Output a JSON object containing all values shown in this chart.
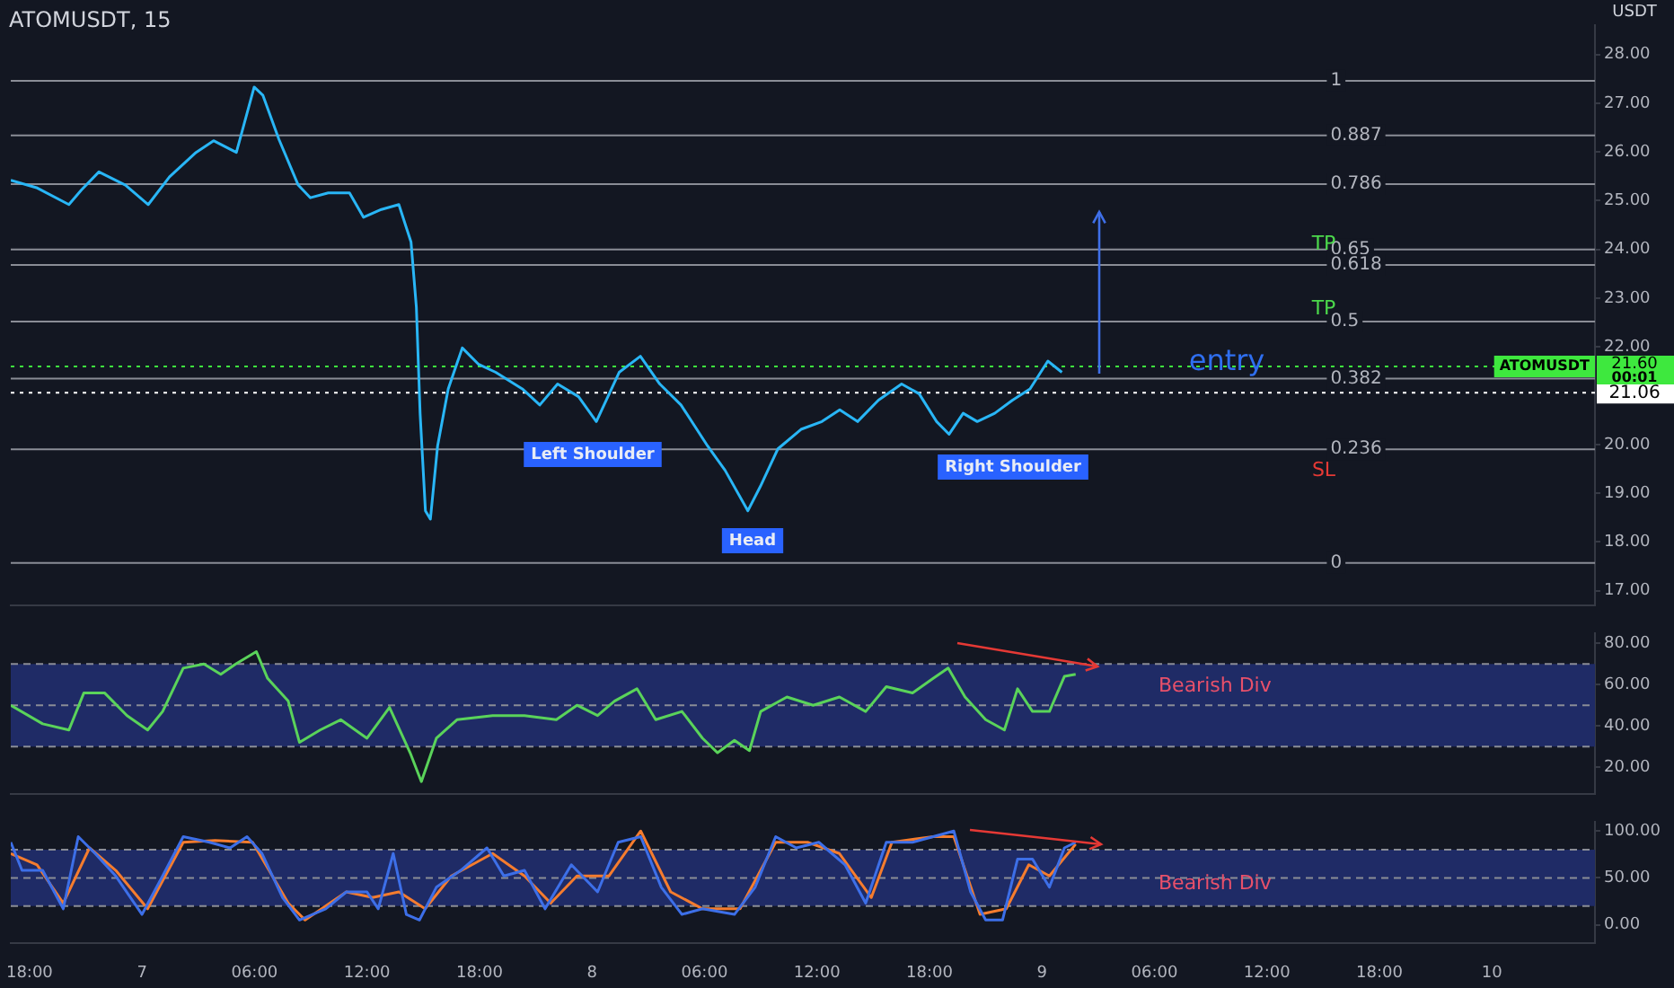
{
  "chart_data": [
    {
      "type": "line",
      "title": "ATOMUSDT, 15",
      "ylabel": "USDT",
      "xlim": [
        "--01-06T17:00",
        "--01-10T05:30"
      ],
      "ylim": [
        16.7,
        28.6
      ],
      "tick_labels": "y",
      "xticks": [
        {
          "value": "--01-06T18:00",
          "label": "18:00"
        },
        {
          "value": "--01-07T00:00",
          "label": "7"
        },
        {
          "value": "--01-07T06:00",
          "label": "06:00"
        },
        {
          "value": "--01-07T12:00",
          "label": "12:00"
        },
        {
          "value": "--01-07T18:00",
          "label": "18:00"
        },
        {
          "value": "--01-08T00:00",
          "label": "8"
        },
        {
          "value": "--01-08T06:00",
          "label": "06:00"
        },
        {
          "value": "--01-08T12:00",
          "label": "12:00"
        },
        {
          "value": "--01-08T18:00",
          "label": "18:00"
        },
        {
          "value": "--01-09T00:00",
          "label": "9"
        },
        {
          "value": "--01-09T06:00",
          "label": "06:00"
        },
        {
          "value": "--01-09T12:00",
          "label": "12:00"
        },
        {
          "value": "--01-09T18:00",
          "label": "18:00"
        },
        {
          "value": "--01-10T00:00",
          "label": "10"
        }
      ],
      "yticks": [
        {
          "value": 17,
          "label": "17.00"
        },
        {
          "value": 18,
          "label": "18.00"
        },
        {
          "value": 19,
          "label": "19.00"
        },
        {
          "value": 20,
          "label": "20.00"
        },
        {
          "value": 22,
          "label": "22.00"
        },
        {
          "value": 23,
          "label": "23.00"
        },
        {
          "value": 24,
          "label": "24.00"
        },
        {
          "value": 25,
          "label": "25.00"
        },
        {
          "value": 26,
          "label": "26.00"
        },
        {
          "value": 27,
          "label": "27.00"
        },
        {
          "value": 28,
          "label": "28.00"
        }
      ],
      "x": [
        "--01-06T17:00",
        "--01-06T18:25",
        "--01-06T20:06",
        "--01-06T20:46",
        "--01-06T21:42",
        "--01-06T23:07",
        "--01-07T00:20",
        "--01-07T01:28",
        "--01-07T02:53",
        "--01-07T03:49",
        "--01-07T05:02",
        "--01-07T05:59",
        "--01-07T06:27",
        "--01-07T07:18",
        "--01-07T08:20",
        "--01-07T08:59",
        "--01-07T09:56",
        "--01-07T11:04",
        "--01-07T11:49",
        "--01-07T12:46",
        "--01-07T13:42",
        "--01-07T14:21",
        "--01-07T14:38",
        "--01-07T14:50",
        "--01-07T15:07",
        "--01-07T15:23",
        "--01-07T15:46",
        "--01-07T16:20",
        "--01-07T17:05",
        "--01-07T17:56",
        "--01-07T18:52",
        "--01-07T20:17",
        "--01-07T21:13",
        "--01-07T22:10",
        "--01-07T23:17",
        "--01-08T00:14",
        "--01-08T01:27",
        "--01-08T02:35",
        "--01-08T03:37",
        "--01-08T04:45",
        "--01-08T06:10",
        "--01-08T07:06",
        "--01-08T08:19",
        "--01-08T08:59",
        "--01-08T09:55",
        "--01-08T11:09",
        "--01-08T12:16",
        "--01-08T13:13",
        "--01-08T14:10",
        "--01-08T15:17",
        "--01-08T16:31",
        "--01-08T17:27",
        "--01-08T18:23",
        "--01-08T19:03",
        "--01-08T19:48",
        "--01-08T20:33",
        "--01-08T21:29",
        "--01-08T22:26",
        "--01-08T23:22",
        "--01-09T00:19",
        "--01-09T01:04"
      ],
      "series": [
        {
          "color": "#29b6f6",
          "values": [
            25.42,
            25.26,
            24.92,
            25.22,
            25.59,
            25.32,
            24.92,
            25.49,
            25.99,
            26.23,
            25.99,
            27.33,
            27.16,
            26.26,
            25.32,
            25.06,
            25.16,
            25.16,
            24.66,
            24.82,
            24.92,
            24.15,
            22.82,
            20.64,
            18.64,
            18.47,
            19.97,
            21.14,
            21.98,
            21.65,
            21.48,
            21.14,
            20.81,
            21.24,
            20.98,
            20.47,
            21.48,
            21.81,
            21.24,
            20.81,
            19.97,
            19.47,
            18.64,
            19.14,
            19.91,
            20.31,
            20.47,
            20.71,
            20.47,
            20.91,
            21.24,
            21.04,
            20.47,
            20.21,
            20.64,
            20.47,
            20.64,
            20.91,
            21.14,
            21.71,
            21.48
          ]
        }
      ],
      "ref_lines": [
        {
          "axis": "y",
          "value": 27.46
        },
        {
          "axis": "y",
          "value": 26.34
        },
        {
          "axis": "y",
          "value": 25.34
        },
        {
          "axis": "y",
          "value": 24.0
        },
        {
          "axis": "y",
          "value": 23.68
        },
        {
          "axis": "y",
          "value": 22.52
        },
        {
          "axis": "y",
          "value": 21.35
        },
        {
          "axis": "y",
          "value": 19.9
        },
        {
          "axis": "y",
          "value": 17.57
        },
        {
          "axis": "y",
          "value": 21.06,
          "label": "21.06",
          "color": "#ffffff",
          "line_style": "dotted"
        },
        {
          "axis": "y",
          "value": 21.6,
          "label": "21.60",
          "color": "#3ee83e",
          "line_style": "dotted"
        }
      ],
      "annotations": [
        {
          "text": "1",
          "x": "--01-09T15:06",
          "y": 27.46
        },
        {
          "text": "0.887",
          "x": "--01-09T15:06",
          "y": 26.34
        },
        {
          "text": "0.786",
          "x": "--01-09T15:06",
          "y": 25.34
        },
        {
          "text": "0.65",
          "x": "--01-09T15:06",
          "y": 24.0
        },
        {
          "text": "0.618",
          "x": "--01-09T15:06",
          "y": 23.68
        },
        {
          "text": "0.5",
          "x": "--01-09T15:06",
          "y": 22.52
        },
        {
          "text": "0.382",
          "x": "--01-09T15:06",
          "y": 21.35
        },
        {
          "text": "0.236",
          "x": "--01-09T15:06",
          "y": 19.9
        },
        {
          "text": "0",
          "x": "--01-09T15:06",
          "y": 17.57
        },
        "Left Shoulder",
        "Head",
        "Right Shoulder",
        "TP",
        "TP",
        "SL",
        "entry",
        "ATOMUSDT",
        "00:01"
      ]
    },
    {
      "type": "line",
      "xlim": [
        "--01-06T17:00",
        "--01-10T05:30"
      ],
      "ylim": [
        7,
        85
      ],
      "tick_labels": "y",
      "xticks": [
        {
          "value": "--01-06T18:00",
          "label": "18:00"
        },
        {
          "value": "--01-07T00:00",
          "label": "7"
        },
        {
          "value": "--01-07T06:00",
          "label": "06:00"
        },
        {
          "value": "--01-07T12:00",
          "label": "12:00"
        },
        {
          "value": "--01-07T18:00",
          "label": "18:00"
        },
        {
          "value": "--01-08T00:00",
          "label": "8"
        },
        {
          "value": "--01-08T06:00",
          "label": "06:00"
        },
        {
          "value": "--01-08T12:00",
          "label": "12:00"
        },
        {
          "value": "--01-08T18:00",
          "label": "18:00"
        },
        {
          "value": "--01-09T00:00",
          "label": "9"
        },
        {
          "value": "--01-09T06:00",
          "label": "06:00"
        },
        {
          "value": "--01-09T12:00",
          "label": "12:00"
        },
        {
          "value": "--01-09T18:00",
          "label": "18:00"
        },
        {
          "value": "--01-10T00:00",
          "label": "10"
        }
      ],
      "yticks": [
        {
          "value": 20,
          "label": "20.00"
        },
        {
          "value": 40,
          "label": "40.00"
        },
        {
          "value": 60,
          "label": "60.00"
        },
        {
          "value": 80,
          "label": "80.00"
        }
      ],
      "x": [
        "--01-06T17:00",
        "--01-06T18:42",
        "--01-06T20:06",
        "--01-06T20:54",
        "--01-06T22:00",
        "--01-06T23:12",
        "--01-07T00:18",
        "--01-07T01:06",
        "--01-07T02:12",
        "--01-07T03:18",
        "--01-07T04:12",
        "--01-07T05:00",
        "--01-07T06:06",
        "--01-07T06:42",
        "--01-07T07:48",
        "--01-07T08:24",
        "--01-07T09:30",
        "--01-07T10:36",
        "--01-07T12:00",
        "--01-07T13:12",
        "--01-07T14:18",
        "--01-07T14:54",
        "--01-07T15:42",
        "--01-07T16:48",
        "--01-07T18:42",
        "--01-07T20:24",
        "--01-07T22:06",
        "--01-07T23:12",
        "--01-08T00:18",
        "--01-08T01:12",
        "--01-08T02:24",
        "--01-08T03:24",
        "--01-08T04:48",
        "--01-08T05:54",
        "--01-08T06:42",
        "--01-08T07:36",
        "--01-08T08:24",
        "--01-08T09:00",
        "--01-08T10:24",
        "--01-08T11:48",
        "--01-08T13:12",
        "--01-08T14:36",
        "--01-08T15:42",
        "--01-08T17:06",
        "--01-08T18:12",
        "--01-08T19:00",
        "--01-08T19:54",
        "--01-08T21:00",
        "--01-08T22:00",
        "--01-08T22:42",
        "--01-08T23:30",
        "--01-09T00:24",
        "--01-09T01:12",
        "--01-09T01:48"
      ],
      "series": [
        {
          "color": "#5ad35a",
          "values": [
            50,
            41,
            38,
            56,
            56,
            45,
            38,
            47,
            68,
            70,
            65,
            70,
            76,
            63,
            52,
            32,
            38,
            43,
            34,
            49,
            27,
            13,
            34,
            43,
            45,
            45,
            43,
            50,
            45,
            52,
            58,
            43,
            47,
            34,
            27,
            33,
            28,
            47,
            54,
            50,
            54,
            47,
            59,
            56,
            63,
            68,
            54,
            43,
            38,
            58,
            47,
            47,
            64,
            65
          ]
        }
      ],
      "bands": [
        {
          "axis": "y",
          "from": 30,
          "to": 70,
          "color": "#1f2b66"
        }
      ],
      "ref_lines": [
        {
          "axis": "y",
          "value": 70,
          "line_style": "dashed"
        },
        {
          "axis": "y",
          "value": 50,
          "line_style": "dashed"
        },
        {
          "axis": "y",
          "value": 30,
          "line_style": "dashed"
        }
      ],
      "annotations": [
        "Bearish Div"
      ]
    },
    {
      "type": "line",
      "xlim": [
        "--01-06T17:00",
        "--01-10T05:30"
      ],
      "ylim": [
        -20,
        110
      ],
      "xticks": [
        {
          "value": "--01-06T18:00",
          "label": "18:00"
        },
        {
          "value": "--01-07T00:00",
          "label": "7"
        },
        {
          "value": "--01-07T06:00",
          "label": "06:00"
        },
        {
          "value": "--01-07T12:00",
          "label": "12:00"
        },
        {
          "value": "--01-07T18:00",
          "label": "18:00"
        },
        {
          "value": "--01-08T00:00",
          "label": "8"
        },
        {
          "value": "--01-08T06:00",
          "label": "06:00"
        },
        {
          "value": "--01-08T12:00",
          "label": "12:00"
        },
        {
          "value": "--01-08T18:00",
          "label": "18:00"
        },
        {
          "value": "--01-09T00:00",
          "label": "9"
        },
        {
          "value": "--01-09T06:00",
          "label": "06:00"
        },
        {
          "value": "--01-09T12:00",
          "label": "12:00"
        },
        {
          "value": "--01-09T18:00",
          "label": "18:00"
        },
        {
          "value": "--01-10T00:00",
          "label": "10"
        }
      ],
      "yticks": [
        {
          "value": 0,
          "label": "0.00"
        },
        {
          "value": 50,
          "label": "50.00"
        },
        {
          "value": 100,
          "label": "100.00"
        }
      ],
      "series": [
        {
          "color": "#3d6fe8",
          "x": [
            "--01-06T17:00",
            "--01-06T17:36",
            "--01-06T18:42",
            "--01-06T19:48",
            "--01-06T20:36",
            "--01-06T21:30",
            "--01-06T22:36",
            "--01-07T00:00",
            "--01-07T01:06",
            "--01-07T02:12",
            "--01-07T03:36",
            "--01-07T04:42",
            "--01-07T05:36",
            "--01-07T06:24",
            "--01-07T07:30",
            "--01-07T08:24",
            "--01-07T09:48",
            "--01-07T10:54",
            "--01-07T12:00",
            "--01-07T12:36",
            "--01-07T13:24",
            "--01-07T14:06",
            "--01-07T14:48",
            "--01-07T15:42",
            "--01-07T17:00",
            "--01-07T18:24",
            "--01-07T19:18",
            "--01-07T20:24",
            "--01-07T21:30",
            "--01-07T22:54",
            "--01-08T00:18",
            "--01-08T01:24",
            "--01-08T02:36",
            "--01-08T03:42",
            "--01-08T04:48",
            "--01-08T05:54",
            "--01-08T07:36",
            "--01-08T08:42",
            "--01-08T09:48",
            "--01-08T10:54",
            "--01-08T12:06",
            "--01-08T13:30",
            "--01-08T14:36",
            "--01-08T15:42",
            "--01-08T17:06",
            "--01-08T18:12",
            "--01-08T19:18",
            "--01-08T20:12",
            "--01-08T21:00",
            "--01-08T21:54",
            "--01-08T22:42",
            "--01-08T23:30",
            "--01-09T00:24",
            "--01-09T01:12",
            "--01-09T01:48"
          ],
          "values": [
            88,
            58,
            58,
            17,
            94,
            76,
            52,
            11,
            52,
            94,
            88,
            82,
            94,
            76,
            29,
            5,
            17,
            35,
            35,
            17,
            76,
            11,
            5,
            40,
            58,
            82,
            52,
            58,
            17,
            64,
            35,
            88,
            94,
            40,
            11,
            17,
            11,
            40,
            94,
            82,
            88,
            64,
            23,
            88,
            88,
            94,
            100,
            35,
            5,
            5,
            70,
            70,
            40,
            82,
            88
          ]
        },
        {
          "color": "#f57c2e",
          "x": [
            "--01-06T17:00",
            "--01-06T18:24",
            "--01-06T19:48",
            "--01-06T21:12",
            "--01-06T22:36",
            "--01-07T00:18",
            "--01-07T02:12",
            "--01-07T03:54",
            "--01-07T05:54",
            "--01-07T07:48",
            "--01-07T08:42",
            "--01-07T10:54",
            "--01-07T12:18",
            "--01-07T13:42",
            "--01-07T15:06",
            "--01-07T16:30",
            "--01-07T18:42",
            "--01-07T20:24",
            "--01-07T21:48",
            "--01-07T23:12",
            "--01-08T00:54",
            "--01-08T02:36",
            "--01-08T04:12",
            "--01-08T05:54",
            "--01-08T07:54",
            "--01-08T09:48",
            "--01-08T11:30",
            "--01-08T13:12",
            "--01-08T14:54",
            "--01-08T16:00",
            "--01-08T18:12",
            "--01-08T19:18",
            "--01-08T20:42",
            "--01-08T22:06",
            "--01-08T23:18",
            "--01-09T00:24",
            "--01-09T01:48"
          ],
          "values": [
            76,
            64,
            23,
            82,
            58,
            17,
            88,
            90,
            88,
            23,
            5,
            35,
            29,
            35,
            17,
            52,
            76,
            52,
            23,
            52,
            52,
            100,
            35,
            17,
            17,
            88,
            88,
            76,
            29,
            88,
            94,
            94,
            11,
            17,
            64,
            52,
            86
          ]
        }
      ],
      "bands": [
        {
          "axis": "y",
          "from": 20,
          "to": 80,
          "color": "#1f2b66"
        }
      ],
      "ref_lines": [
        {
          "axis": "y",
          "value": 80,
          "line_style": "dashed"
        },
        {
          "axis": "y",
          "value": 50,
          "line_style": "dashed"
        },
        {
          "axis": "y",
          "value": 20,
          "line_style": "dashed"
        }
      ],
      "annotations": [
        "Bearish Div"
      ]
    }
  ]
}
